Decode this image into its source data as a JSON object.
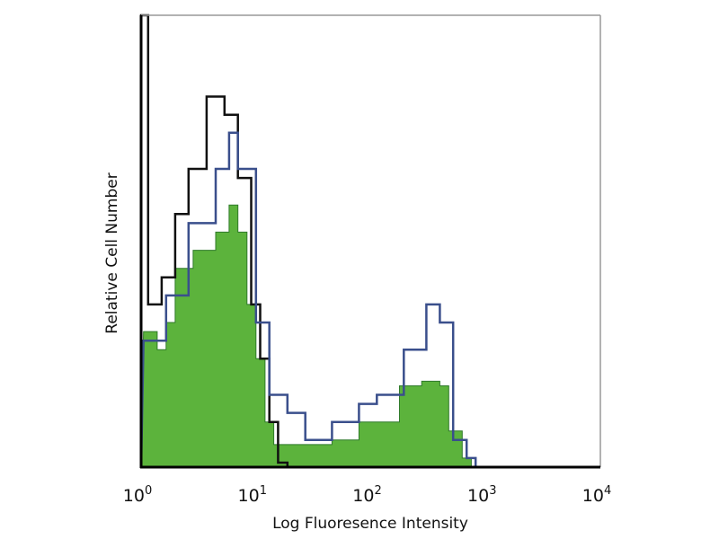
{
  "chart_data": {
    "type": "area",
    "title": "",
    "xlabel": "Log Fluoresence Intensity",
    "ylabel": "Relative Cell Number",
    "xscale": "log",
    "xlim": [
      1,
      10000
    ],
    "ylim": [
      0,
      100
    ],
    "grid": false,
    "x_ticks": [
      {
        "base": "10",
        "exp": "0",
        "value": 1
      },
      {
        "base": "10",
        "exp": "1",
        "value": 10
      },
      {
        "base": "10",
        "exp": "2",
        "value": 100
      },
      {
        "base": "10",
        "exp": "3",
        "value": 1000
      },
      {
        "base": "10",
        "exp": "4",
        "value": 10000
      }
    ],
    "series": [
      {
        "style": "outline",
        "color": "#111111",
        "points": [
          [
            1.0,
            100
          ],
          [
            1.15,
            36
          ],
          [
            1.51,
            42
          ],
          [
            1.98,
            56
          ],
          [
            2.59,
            66
          ],
          [
            3.72,
            82
          ],
          [
            5.33,
            78
          ],
          [
            6.97,
            64
          ],
          [
            9.1,
            36
          ],
          [
            10.9,
            24
          ],
          [
            13.1,
            10
          ],
          [
            15.6,
            1
          ],
          [
            18.8,
            0
          ]
        ]
      },
      {
        "style": "outline",
        "color": "#3a4f8c",
        "points": [
          [
            1.05,
            28
          ],
          [
            1.65,
            38
          ],
          [
            2.59,
            54
          ],
          [
            4.46,
            66
          ],
          [
            5.84,
            74
          ],
          [
            6.97,
            66
          ],
          [
            10,
            32
          ],
          [
            13.1,
            16
          ],
          [
            18.8,
            12
          ],
          [
            26.9,
            6
          ],
          [
            46,
            10
          ],
          [
            79,
            14
          ],
          [
            113,
            16
          ],
          [
            194,
            26
          ],
          [
            305,
            36
          ],
          [
            400,
            32
          ],
          [
            522,
            6
          ],
          [
            684,
            2
          ],
          [
            820,
            0
          ]
        ]
      },
      {
        "style": "filled",
        "color": "#5cb33c",
        "points": [
          [
            1.05,
            30
          ],
          [
            1.38,
            26
          ],
          [
            1.65,
            32
          ],
          [
            1.98,
            44
          ],
          [
            2.84,
            48
          ],
          [
            4.46,
            52
          ],
          [
            5.84,
            58
          ],
          [
            6.97,
            52
          ],
          [
            8.36,
            36
          ],
          [
            10,
            24
          ],
          [
            12,
            10
          ],
          [
            14.3,
            5
          ],
          [
            22.4,
            5
          ],
          [
            46,
            6
          ],
          [
            79,
            10
          ],
          [
            136,
            10
          ],
          [
            178,
            18
          ],
          [
            278,
            19
          ],
          [
            400,
            18
          ],
          [
            478,
            8
          ],
          [
            626,
            2
          ],
          [
            752,
            0
          ]
        ]
      }
    ]
  }
}
